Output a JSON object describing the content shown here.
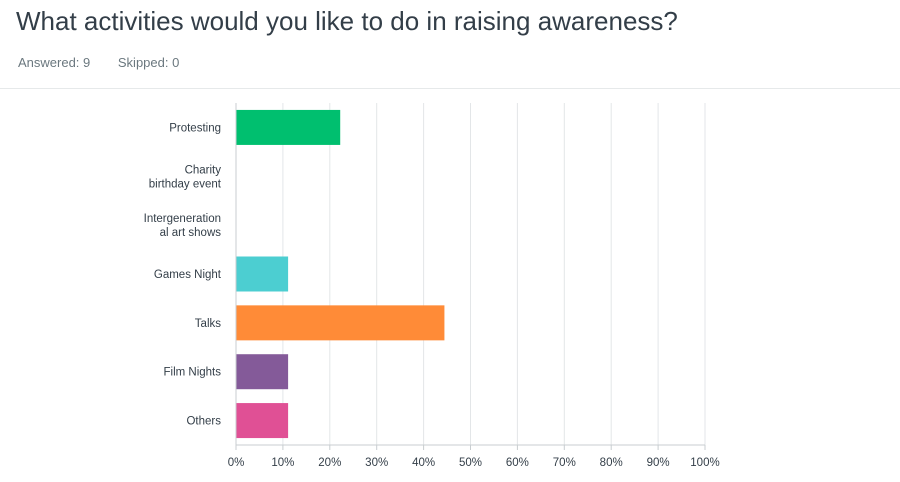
{
  "question": {
    "title": "What activities would you like to do in raising awareness?",
    "answered": "Answered: 9",
    "skipped": "Skipped: 0"
  },
  "chart_data": {
    "type": "bar",
    "orientation": "horizontal",
    "title": "What activities would you like to do in raising awareness?",
    "xlabel": "",
    "ylabel": "",
    "xlim": [
      0,
      100
    ],
    "x_ticks": [
      "0%",
      "10%",
      "20%",
      "30%",
      "40%",
      "50%",
      "60%",
      "70%",
      "80%",
      "90%",
      "100%"
    ],
    "categories": [
      [
        "Protesting"
      ],
      [
        "Charity",
        "birthday event"
      ],
      [
        "Intergeneration",
        "al art shows"
      ],
      [
        "Games Night"
      ],
      [
        "Talks"
      ],
      [
        "Film Nights"
      ],
      [
        "Others"
      ]
    ],
    "values": [
      22.22,
      0,
      0,
      11.11,
      44.44,
      11.11,
      11.11
    ],
    "colors": [
      "#00bf6f",
      "#6bc8cd",
      "#f05b24",
      "#4cced1",
      "#ff8b37",
      "#845a99",
      "#e05095"
    ],
    "grid": true,
    "legend": "none"
  }
}
